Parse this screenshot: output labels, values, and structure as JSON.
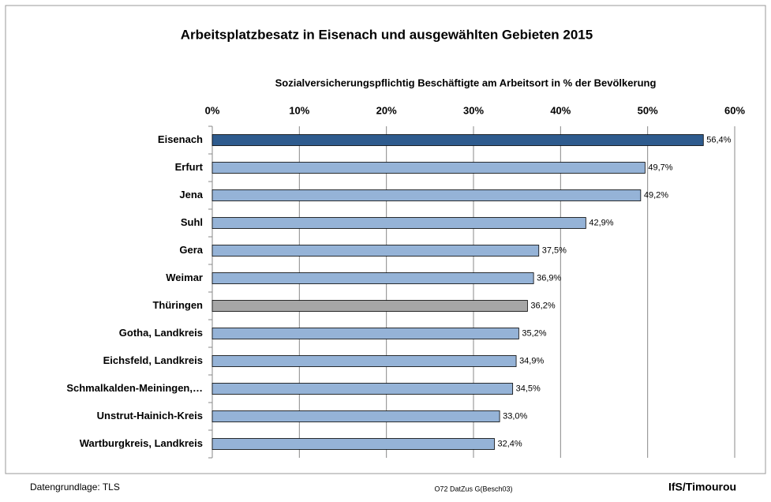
{
  "chart_data": {
    "type": "bar",
    "orientation": "horizontal",
    "title": "Arbeitsplatzbesatz in Eisenach und ausgewählten Gebieten 2015",
    "subtitle": "Sozialversicherungspflichtig Beschäftigte am Arbeitsort  in % der Bevölkerung",
    "categories": [
      "Eisenach",
      "Erfurt",
      "Jena",
      "Suhl",
      "Gera",
      "Weimar",
      "Thüringen",
      "Gotha, Landkreis",
      "Eichsfeld, Landkreis",
      "Schmalkalden-Meiningen,…",
      "Unstrut-Hainich-Kreis",
      "Wartburgkreis, Landkreis"
    ],
    "values": [
      56.4,
      49.7,
      49.2,
      42.9,
      37.5,
      36.9,
      36.2,
      35.2,
      34.9,
      34.5,
      33.0,
      32.4
    ],
    "value_labels": [
      "56,4%",
      "49,7%",
      "49,2%",
      "42,9%",
      "37,5%",
      "36,9%",
      "36,2%",
      "35,2%",
      "34,9%",
      "34,5%",
      "33,0%",
      "32,4%"
    ],
    "colors": [
      "#2e5b8e",
      "#95b3d7",
      "#95b3d7",
      "#95b3d7",
      "#95b3d7",
      "#95b3d7",
      "#a6a6a6",
      "#95b3d7",
      "#95b3d7",
      "#95b3d7",
      "#95b3d7",
      "#95b3d7"
    ],
    "xlim": [
      0,
      60
    ],
    "xticks": [
      {
        "value": 0,
        "label": "0%"
      },
      {
        "value": 10,
        "label": "10%"
      },
      {
        "value": 20,
        "label": "20%"
      },
      {
        "value": 30,
        "label": "30%"
      },
      {
        "value": 40,
        "label": "40%"
      },
      {
        "value": 50,
        "label": "50%"
      },
      {
        "value": 60,
        "label": "60%"
      }
    ],
    "grid": true
  },
  "footer": {
    "source": "Datengrundlage: TLS",
    "code": "O72 DatZus G(Besch03)",
    "author": "IfS/Timourou"
  }
}
